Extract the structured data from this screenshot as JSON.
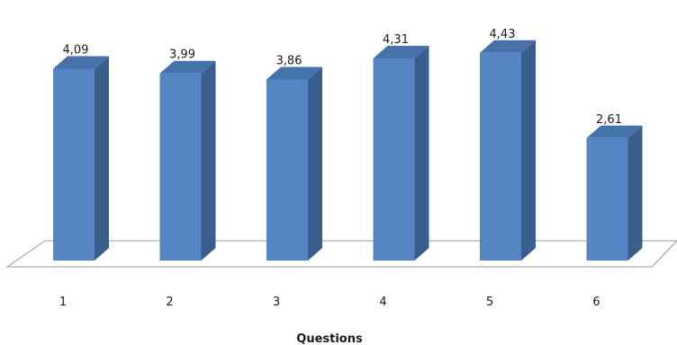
{
  "chart_data": {
    "type": "bar",
    "categories": [
      "1",
      "2",
      "3",
      "4",
      "5",
      "6"
    ],
    "values": [
      4.09,
      3.99,
      3.86,
      4.31,
      4.43,
      2.61
    ],
    "value_labels": [
      "4,09",
      "3,99",
      "3,86",
      "4,31",
      "4,43",
      "2,61"
    ],
    "title": "",
    "xlabel": "Questions",
    "ylabel": "",
    "grid": false,
    "legend": "none",
    "style": "3d-column",
    "colors": {
      "bar_front": "#5585C5",
      "bar_side": "#3A5F8C",
      "bar_top": "#4572A8",
      "floor_stroke": "#9A9A9A"
    }
  }
}
